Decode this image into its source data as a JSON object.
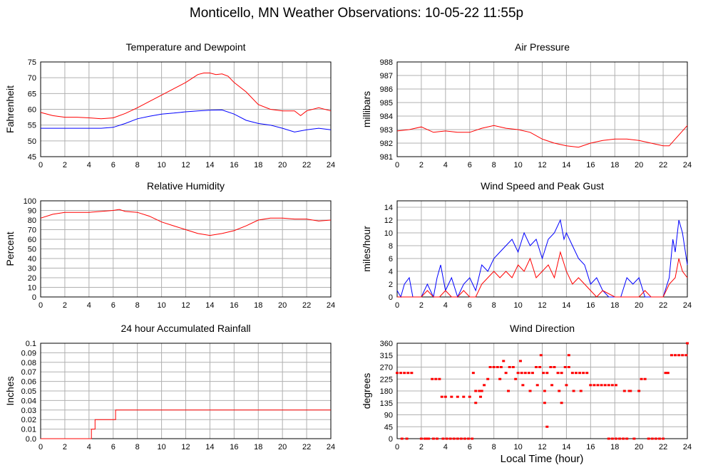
{
  "page": {
    "title": "Monticello, MN Weather Observations: 10-05-22 11:55p",
    "x_axis_label": "Local Time (hour)"
  },
  "chart_data": [
    {
      "id": "temp",
      "type": "line",
      "title": "Temperature and Dewpoint",
      "ylabel": "Fahrenheit",
      "xlabel": "",
      "xlim": [
        0,
        24
      ],
      "ylim": [
        45,
        75
      ],
      "xticks": [
        0,
        2,
        4,
        6,
        8,
        10,
        12,
        14,
        16,
        18,
        20,
        22,
        24
      ],
      "yticks": [
        45,
        50,
        55,
        60,
        65,
        70,
        75
      ],
      "grid": true,
      "series": [
        {
          "color": "#ff0000",
          "x": [
            0,
            1,
            2,
            3,
            4,
            5,
            6,
            7,
            8,
            9,
            10,
            11,
            12,
            13,
            13.5,
            14,
            14.5,
            15,
            15.5,
            16,
            17,
            18,
            19,
            20,
            21,
            21.5,
            22,
            23,
            24
          ],
          "y": [
            59,
            58,
            57.5,
            57.5,
            57.3,
            57,
            57.3,
            58.7,
            60.5,
            62.5,
            64.5,
            66.5,
            68.5,
            71,
            71.5,
            71.5,
            71,
            71.2,
            70.5,
            68.5,
            65.5,
            61.5,
            60,
            59.5,
            59.5,
            58,
            59.5,
            60.5,
            59.5
          ]
        },
        {
          "color": "#0000ff",
          "x": [
            0,
            1,
            2,
            3,
            4,
            5,
            6,
            7,
            8,
            9,
            10,
            11,
            12,
            13,
            14,
            15,
            16,
            17,
            18,
            19,
            20,
            21,
            22,
            23,
            24
          ],
          "y": [
            54,
            54,
            54,
            54,
            54,
            54,
            54.3,
            55.5,
            57,
            57.8,
            58.5,
            58.8,
            59.2,
            59.5,
            59.7,
            59.8,
            58.5,
            56.5,
            55.5,
            55,
            54,
            52.8,
            53.5,
            54,
            53.5
          ]
        }
      ]
    },
    {
      "id": "pressure",
      "type": "line",
      "title": "Air Pressure",
      "ylabel": "millibars",
      "xlabel": "",
      "xlim": [
        0,
        24
      ],
      "ylim": [
        981,
        988
      ],
      "xticks": [
        0,
        2,
        4,
        6,
        8,
        10,
        12,
        14,
        16,
        18,
        20,
        22,
        24
      ],
      "yticks": [
        981,
        982,
        983,
        984,
        985,
        986,
        987,
        988
      ],
      "grid": true,
      "series": [
        {
          "color": "#ff0000",
          "x": [
            0,
            1,
            2,
            3,
            4,
            5,
            6,
            7,
            8,
            9,
            10,
            11,
            12,
            13,
            14,
            15,
            16,
            17,
            18,
            19,
            20,
            21,
            22,
            22.5,
            23,
            24
          ],
          "y": [
            982.9,
            983,
            983.2,
            982.8,
            982.9,
            982.8,
            982.8,
            983.1,
            983.3,
            983.1,
            983,
            982.8,
            982.3,
            982,
            981.8,
            981.7,
            982,
            982.2,
            982.3,
            982.3,
            982.2,
            982,
            981.8,
            981.8,
            982.3,
            983.3
          ]
        }
      ]
    },
    {
      "id": "humidity",
      "type": "line",
      "title": "Relative Humidity",
      "ylabel": "Percent",
      "xlabel": "",
      "xlim": [
        0,
        24
      ],
      "ylim": [
        0,
        100
      ],
      "xticks": [
        0,
        2,
        4,
        6,
        8,
        10,
        12,
        14,
        16,
        18,
        20,
        22,
        24
      ],
      "yticks": [
        0,
        10,
        20,
        30,
        40,
        50,
        60,
        70,
        80,
        90,
        100
      ],
      "grid": true,
      "series": [
        {
          "color": "#ff0000",
          "x": [
            0,
            1,
            2,
            3,
            4,
            5,
            6,
            6.5,
            7,
            8,
            9,
            10,
            11,
            12,
            13,
            14,
            15,
            16,
            17,
            18,
            19,
            20,
            21,
            22,
            23,
            24
          ],
          "y": [
            82,
            86,
            88,
            88,
            88,
            89,
            90,
            91,
            89,
            88,
            84,
            78,
            74,
            70,
            66,
            64,
            66,
            69,
            74,
            80,
            82,
            82,
            81,
            81,
            79,
            80
          ]
        }
      ]
    },
    {
      "id": "wind",
      "type": "line",
      "title": "Wind Speed and Peak Gust",
      "ylabel": "miles/hour",
      "xlabel": "",
      "xlim": [
        0,
        24
      ],
      "ylim": [
        0,
        15
      ],
      "xticks": [
        0,
        2,
        4,
        6,
        8,
        10,
        12,
        14,
        16,
        18,
        20,
        22,
        24
      ],
      "yticks": [
        0,
        2,
        4,
        6,
        8,
        10,
        12,
        14
      ],
      "grid": true,
      "series": [
        {
          "color": "#0000ff",
          "x": [
            0,
            0.3,
            0.6,
            1,
            1.3,
            1.6,
            2,
            2.5,
            3,
            3.3,
            3.6,
            4,
            4.5,
            5,
            5.5,
            6,
            6.5,
            7,
            7.5,
            8,
            8.5,
            9,
            9.5,
            10,
            10.5,
            11,
            11.5,
            12,
            12.5,
            13,
            13.5,
            13.8,
            14,
            14.5,
            15,
            15.5,
            16,
            16.5,
            17,
            17.5,
            18,
            18.5,
            19,
            19.5,
            20,
            20.5,
            21,
            21.5,
            22,
            22.5,
            22.8,
            23,
            23.3,
            23.6,
            24
          ],
          "y": [
            1,
            0,
            2,
            3,
            0,
            0,
            0,
            2,
            0,
            3,
            5,
            1,
            3,
            0,
            2,
            3,
            1,
            5,
            4,
            6,
            7,
            8,
            9,
            7,
            10,
            8,
            9,
            6,
            9,
            10,
            12,
            9,
            10,
            8,
            6,
            5,
            2,
            3,
            1,
            0,
            0,
            0,
            3,
            2,
            3,
            0,
            0,
            0,
            0,
            3,
            9,
            7,
            12,
            10,
            5
          ]
        },
        {
          "color": "#ff0000",
          "x": [
            0,
            1,
            2,
            2.5,
            3,
            3.5,
            4,
            4.5,
            5,
            5.5,
            6,
            6.5,
            7,
            7.5,
            8,
            8.5,
            9,
            9.5,
            10,
            10.5,
            11,
            11.5,
            12,
            12.5,
            13,
            13.5,
            14,
            14.5,
            15,
            15.5,
            16,
            16.5,
            17,
            18,
            19,
            20,
            20.5,
            21,
            22,
            22.5,
            23,
            23.3,
            23.6,
            24
          ],
          "y": [
            0,
            0,
            0,
            1,
            0,
            0,
            1,
            0,
            0,
            1,
            0,
            0,
            2,
            3,
            4,
            3,
            4,
            3,
            5,
            4,
            6,
            3,
            4,
            5,
            3,
            7,
            4,
            2,
            3,
            2,
            1,
            0,
            1,
            0,
            0,
            0,
            1,
            0,
            0,
            2,
            3,
            6,
            4,
            3
          ]
        }
      ]
    },
    {
      "id": "rain",
      "type": "line",
      "title": "24 hour Accumulated Rainfall",
      "ylabel": "Inches",
      "xlabel": "",
      "xlim": [
        0,
        24
      ],
      "ylim": [
        0,
        0.1
      ],
      "xticks": [
        0,
        2,
        4,
        6,
        8,
        10,
        12,
        14,
        16,
        18,
        20,
        22,
        24
      ],
      "yticks": [
        "0.0",
        "0.01",
        "0.02",
        "0.03",
        "0.04",
        "0.05",
        "0.06",
        "0.07",
        "0.08",
        "0.09",
        "0.1"
      ],
      "grid": true,
      "series": [
        {
          "color": "#ff0000",
          "x": [
            0,
            4.2,
            4.2,
            4.5,
            4.5,
            6.0,
            6.0,
            6.2,
            6.2,
            24
          ],
          "y": [
            0,
            0,
            0.01,
            0.01,
            0.02,
            0.02,
            0.02,
            0.02,
            0.03,
            0.03
          ]
        }
      ]
    },
    {
      "id": "direction",
      "type": "scatter",
      "title": "Wind Direction",
      "ylabel": "degrees",
      "xlabel": "Local Time (hour)",
      "xlim": [
        0,
        24
      ],
      "ylim": [
        0,
        360
      ],
      "xticks": [
        0,
        2,
        4,
        6,
        8,
        10,
        12,
        14,
        16,
        18,
        20,
        22,
        24
      ],
      "yticks": [
        0,
        45,
        90,
        135,
        180,
        225,
        270,
        315,
        360
      ],
      "grid": true,
      "series": [
        {
          "color": "#ff0000",
          "x": [
            0,
            0.3,
            0.6,
            0.9,
            1.2,
            0.4,
            0.8,
            2,
            2.3,
            2.6,
            2.9,
            3.2,
            3.5,
            2.5,
            3,
            3.3,
            3.8,
            4.1,
            4.4,
            4.7,
            5,
            5.3,
            5.6,
            5.9,
            6.2,
            3.7,
            4,
            4.5,
            5,
            5.5,
            6,
            6.3,
            6.5,
            6.8,
            7,
            7.2,
            7.5,
            7.7,
            8,
            8.3,
            8.6,
            9,
            9.3,
            9.6,
            10,
            10.3,
            10.6,
            10.9,
            11.2,
            11.5,
            11.8,
            12.1,
            12.4,
            12.7,
            13,
            13.3,
            13.6,
            13.9,
            14.2,
            14.5,
            14.8,
            15.1,
            15.4,
            15.7,
            8.5,
            9.2,
            9.8,
            10.4,
            11,
            11.6,
            12.2,
            12.8,
            13.4,
            14,
            14.6,
            15.2,
            16,
            16.3,
            16.6,
            16.9,
            17.2,
            17.5,
            17.8,
            18.1,
            17.5,
            17.8,
            18.1,
            18.4,
            18.7,
            19,
            19.2,
            18.8,
            19.3,
            19.6,
            20,
            20.2,
            20.5,
            20.8,
            21.1,
            21.4,
            21.7,
            22,
            22.2,
            22.4,
            22.7,
            23,
            23.3,
            23.6,
            23.9,
            24,
            12.2,
            12.4,
            13.6,
            14.2,
            8.8,
            10.2,
            11.9,
            6.5,
            6.9
          ],
          "y": [
            248,
            248,
            248,
            248,
            248,
            0,
            0,
            0,
            0,
            0,
            225,
            225,
            225,
            0,
            0,
            0,
            0,
            0,
            0,
            0,
            0,
            0,
            0,
            0,
            0,
            158,
            158,
            158,
            158,
            158,
            158,
            248,
            180,
            180,
            180,
            202,
            225,
            270,
            270,
            270,
            270,
            248,
            270,
            270,
            248,
            248,
            248,
            248,
            248,
            270,
            270,
            248,
            248,
            270,
            270,
            248,
            248,
            270,
            270,
            248,
            248,
            248,
            248,
            248,
            225,
            180,
            225,
            202,
            180,
            202,
            180,
            202,
            180,
            202,
            180,
            180,
            202,
            202,
            202,
            202,
            202,
            202,
            202,
            202,
            0,
            0,
            0,
            0,
            0,
            0,
            180,
            180,
            180,
            0,
            180,
            225,
            225,
            0,
            0,
            0,
            0,
            0,
            248,
            248,
            315,
            315,
            315,
            315,
            315,
            360,
            135,
            45,
            135,
            315,
            293,
            293,
            315,
            135,
            158
          ]
        }
      ]
    }
  ]
}
